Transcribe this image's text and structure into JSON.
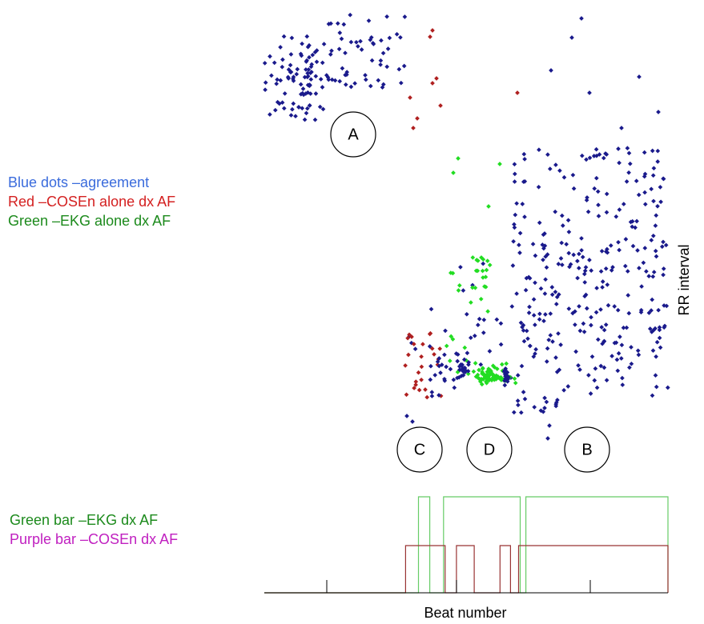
{
  "legend": {
    "agreement": {
      "text": "Blue dots –agreement",
      "color": "#3a6bdc"
    },
    "cosen_alone": {
      "text": "Red –COSEn alone dx AF",
      "color": "#d42020"
    },
    "ekg_alone": {
      "text": "Green –EKG alone dx AF",
      "color": "#1c8a1c"
    },
    "ekg_bar": {
      "text": "Green bar –EKG dx AF",
      "color": "#1c8a1c"
    },
    "cosen_bar": {
      "text": "Purple bar –COSEn dx AF",
      "color": "#c020c0"
    }
  },
  "markers": {
    "A": "A",
    "B": "B",
    "C": "C",
    "D": "D"
  },
  "colors": {
    "blue": "#1a1a8c",
    "red": "#b02020",
    "green": "#22dd22",
    "bar_green": "#66cc66",
    "bar_red": "#993333"
  },
  "chart_data": {
    "type": "scatter",
    "xlabel": "Beat number",
    "ylabel": "RR interval",
    "grid": false,
    "x_ticks_unlabeled": 3,
    "clusters": [
      {
        "label": "A",
        "classification": "agreement",
        "beats": "early",
        "rr_level": "long"
      },
      {
        "label": "C",
        "classification": "COSEn alone dx AF",
        "beats": "mid",
        "rr_level": "short"
      },
      {
        "label": "D",
        "classification": "EKG alone dx AF",
        "beats": "mid",
        "rr_level": "short"
      },
      {
        "label": "B",
        "classification": "agreement",
        "beats": "late",
        "rr_level": "mixed"
      }
    ],
    "bars": [
      {
        "name": "EKG dx AF",
        "color": "green",
        "on_intervals": [
          [
            0.382,
            0.41
          ],
          [
            0.444,
            0.634
          ],
          [
            0.648,
            1.0
          ]
        ]
      },
      {
        "name": "COSEn dx AF",
        "color": "purple",
        "on_intervals": [
          [
            0.35,
            0.448
          ],
          [
            0.476,
            0.52
          ],
          [
            0.584,
            0.61
          ],
          [
            0.63,
            1.0
          ]
        ]
      }
    ]
  }
}
